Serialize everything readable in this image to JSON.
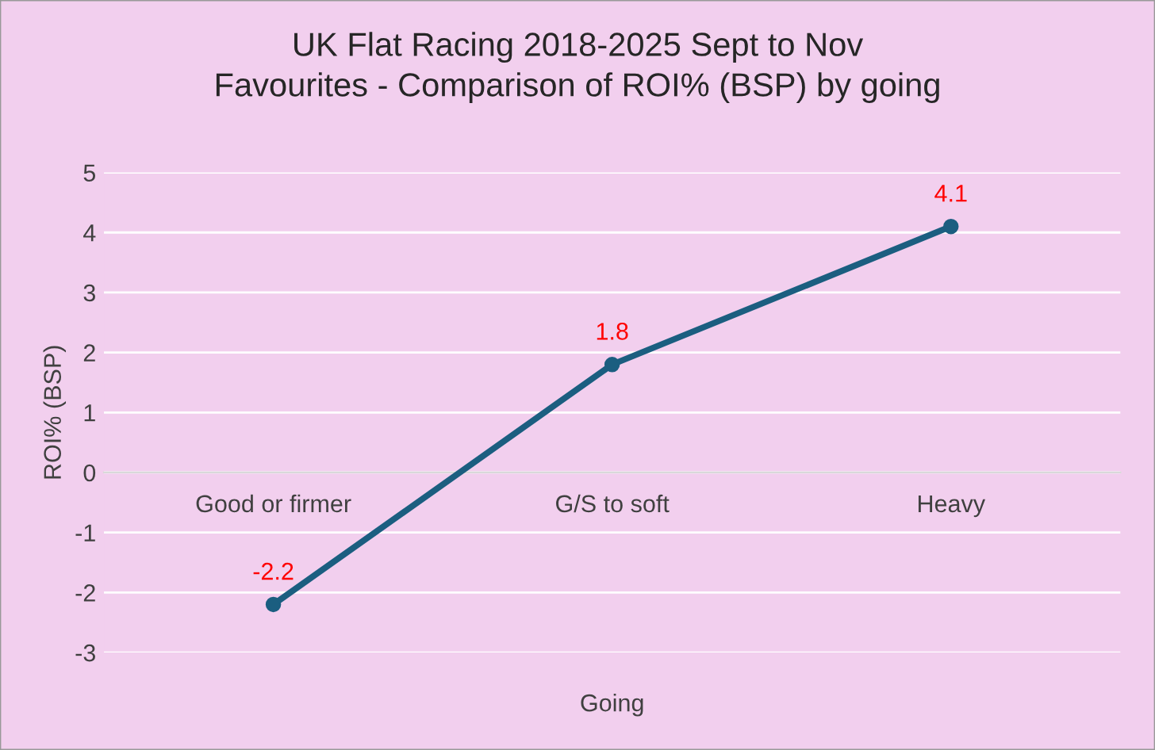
{
  "chart_data": {
    "type": "line",
    "title": "UK Flat Racing 2018-2025 Sept to Nov\nFavourites - Comparison of ROI% (BSP) by going",
    "xlabel": "Going",
    "ylabel": "ROI% (BSP)",
    "categories": [
      "Good or firmer",
      "G/S to soft",
      "Heavy"
    ],
    "series": [
      {
        "color": "#1b5e80",
        "values": [
          -2.2,
          1.8,
          4.1
        ]
      }
    ],
    "ylim": [
      -3,
      5
    ],
    "yticks": [
      -3,
      -2,
      -1,
      0,
      1,
      2,
      3,
      4,
      5
    ],
    "grid": "y",
    "marker": "circle",
    "line_style": "solid",
    "data_labels": true
  }
}
